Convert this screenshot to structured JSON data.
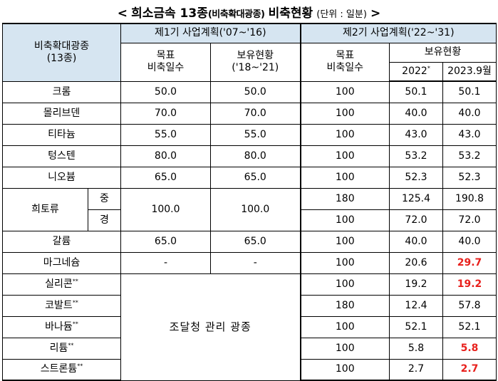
{
  "title": {
    "open": "<",
    "main": "희소금속 13종",
    "sub": "(비축확대광종)",
    "main2": "비축현황",
    "unit": "(단위 : 일분)",
    "close": ">"
  },
  "header": {
    "category": "비축확대광종\n(13종)",
    "phase1": "제1기 사업계획('07~'16)",
    "phase2": "제2기 사업계획('22~'31)",
    "target": "목표\n비축일수",
    "holding1": "보유현황\n('18~'21)",
    "target2": "목표\n비축일수",
    "holding2": "보유현황",
    "col2022": "2022",
    "col2022_mark": "*",
    "col2023": "2023.9월"
  },
  "rows": [
    {
      "name": "크롬",
      "t1": "50.0",
      "h1": "50.0",
      "t2": "100",
      "y22": "50.1",
      "y23": "50.1"
    },
    {
      "name": "몰리브덴",
      "t1": "70.0",
      "h1": "70.0",
      "t2": "100",
      "y22": "40.0",
      "y23": "40.0"
    },
    {
      "name": "티타늄",
      "t1": "55.0",
      "h1": "55.0",
      "t2": "100",
      "y22": "43.0",
      "y23": "43.0"
    },
    {
      "name": "텅스텐",
      "t1": "80.0",
      "h1": "80.0",
      "t2": "100",
      "y22": "53.2",
      "y23": "53.2"
    },
    {
      "name": "니오븀",
      "t1": "65.0",
      "h1": "65.0",
      "t2": "100",
      "y22": "52.3",
      "y23": "52.3"
    }
  ],
  "rare_earth": {
    "name": "희토류",
    "sub1": "중",
    "sub2": "경",
    "t1": "100.0",
    "h1": "100.0",
    "heavy": {
      "t2": "180",
      "y22": "125.4",
      "y23": "190.8"
    },
    "light": {
      "t2": "100",
      "y22": "72.0",
      "y23": "72.0"
    }
  },
  "gallium": {
    "name": "갈륨",
    "t1": "65.0",
    "h1": "65.0",
    "t2": "100",
    "y22": "40.0",
    "y23": "40.0"
  },
  "magnesium": {
    "name": "마그네슘",
    "t1": "-",
    "h1": "-",
    "t2": "100",
    "y22": "20.6",
    "y23": "29.7"
  },
  "procurement_note": "조달청 관리 광종",
  "procurement_rows": [
    {
      "name": "실리콘",
      "mark": "**",
      "t2": "100",
      "y22": "19.2",
      "y23": "19.2",
      "red": true
    },
    {
      "name": "코발트",
      "mark": "**",
      "t2": "180",
      "y22": "12.4",
      "y23": "57.8",
      "red": false
    },
    {
      "name": "바나듐",
      "mark": "**",
      "t2": "100",
      "y22": "52.1",
      "y23": "52.1",
      "red": false
    },
    {
      "name": "리튬",
      "mark": "**",
      "t2": "100",
      "y22": "5.8",
      "y23": "5.8",
      "red": true
    },
    {
      "name": "스트론튬",
      "mark": "**",
      "t2": "100",
      "y22": "2.7",
      "y23": "2.7",
      "red": true
    }
  ],
  "colors": {
    "header_bg": "#d6e5f1",
    "highlight": "#e8201c"
  }
}
